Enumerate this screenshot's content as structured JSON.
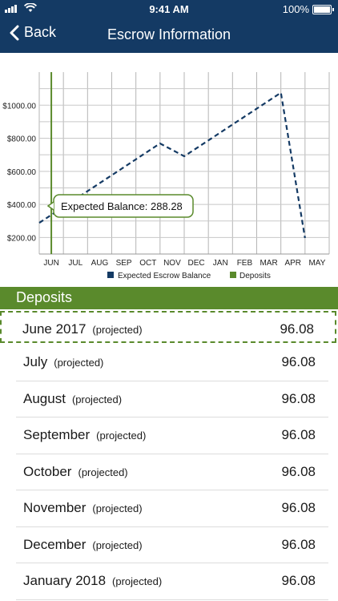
{
  "status": {
    "time": "9:41 AM",
    "battery": "100%"
  },
  "nav": {
    "back_label": "Back",
    "title": "Escrow Information"
  },
  "chart_data": {
    "type": "line",
    "categories": [
      "JUN",
      "JUL",
      "AUG",
      "SEP",
      "OCT",
      "NOV",
      "DEC",
      "JAN",
      "FEB",
      "MAR",
      "APR",
      "MAY"
    ],
    "series": [
      {
        "name": "Expected Escrow Balance",
        "values": [
          288.28,
          384.36,
          480.44,
          576.52,
          672.6,
          768.68,
          691.0,
          787.08,
          883.16,
          979.24,
          1075.32,
          197.0
        ]
      }
    ],
    "yticks": [
      "$200.00",
      "$400.00",
      "$600.00",
      "$800.00",
      "$1000.00"
    ],
    "ytick_values": [
      200,
      400,
      600,
      800,
      1000
    ],
    "ylim": [
      100,
      1200
    ],
    "legend": [
      {
        "label": "Expected Escrow Balance",
        "color": "#143a64"
      },
      {
        "label": "Deposits",
        "color": "#5a8a2c"
      }
    ],
    "tooltip": "Expected Balance: 288.28",
    "legend_position": "bottom",
    "grid": true
  },
  "deposits": {
    "title": "Deposits",
    "items": [
      {
        "month": "June 2017",
        "status": "(projected)",
        "amount": "96.08"
      },
      {
        "month": "July",
        "status": "(projected)",
        "amount": "96.08"
      },
      {
        "month": "August",
        "status": "(projected)",
        "amount": "96.08"
      },
      {
        "month": "September",
        "status": "(projected)",
        "amount": "96.08"
      },
      {
        "month": "October",
        "status": "(projected)",
        "amount": "96.08"
      },
      {
        "month": "November",
        "status": "(projected)",
        "amount": "96.08"
      },
      {
        "month": "December",
        "status": "(projected)",
        "amount": "96.08"
      },
      {
        "month": "January 2018",
        "status": "(projected)",
        "amount": "96.08"
      }
    ]
  },
  "colors": {
    "nav_bg": "#143a64",
    "accent_green": "#5a8a2c",
    "line_navy": "#143a64"
  }
}
